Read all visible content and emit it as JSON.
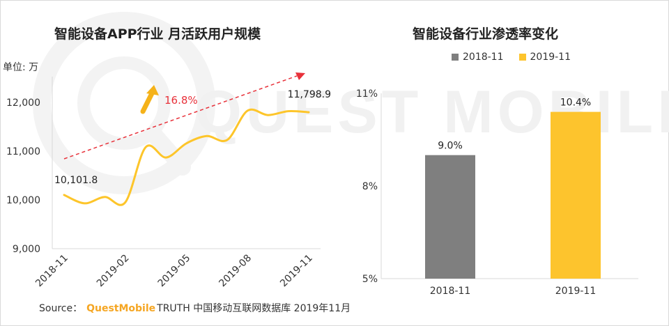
{
  "watermark": {
    "text": "QUEST MOBILE"
  },
  "source": {
    "label": "Source：",
    "brand": "QuestMobile",
    "rest": "TRUTH 中国移动互联网数据库 2019年11月"
  },
  "colors": {
    "line": "#fdc52a",
    "trend": "#e8313a",
    "bar_2018": "#7f7f7f",
    "bar_2019": "#fdc42d",
    "axis": "#d9d9d9",
    "text": "#333333"
  },
  "chart_data": [
    {
      "type": "line",
      "title": "智能设备APP行业 月活跃用户规模",
      "unit_label": "单位: 万",
      "ylim": [
        9000,
        12000
      ],
      "y_ticks": [
        "9,000",
        "10,000",
        "11,000",
        "12,000"
      ],
      "y_tick_values": [
        9000,
        10000,
        11000,
        12000
      ],
      "x_tick_labels": [
        "2018-11",
        "2019-02",
        "2019-05",
        "2019-08",
        "2019-11"
      ],
      "x": [
        "2018-11",
        "2018-12",
        "2019-01",
        "2019-02",
        "2019-03",
        "2019-04",
        "2019-05",
        "2019-06",
        "2019-07",
        "2019-08",
        "2019-09",
        "2019-10",
        "2019-11"
      ],
      "series": [
        {
          "values": [
            10101.8,
            9930,
            10060,
            9950,
            11080,
            10870,
            11160,
            11310,
            11230,
            11830,
            11740,
            11820,
            11798.9
          ]
        }
      ],
      "data_labels": {
        "first": "10,101.8",
        "last": "11,798.9"
      },
      "annotation": {
        "text": "16.8%"
      },
      "grid": false
    },
    {
      "type": "bar",
      "title": "智能设备行业渗透率变化",
      "categories": [
        "2018-11",
        "2019-11"
      ],
      "values": [
        9.0,
        10.4
      ],
      "value_labels": [
        "9.0%",
        "10.4%"
      ],
      "legend": [
        "2018-11",
        "2019-11"
      ],
      "legend_position": "top",
      "ylim": [
        5,
        11
      ],
      "y_ticks": [
        "5%",
        "8%",
        "11%"
      ],
      "y_tick_values": [
        5,
        8,
        11
      ],
      "grid": false
    }
  ]
}
